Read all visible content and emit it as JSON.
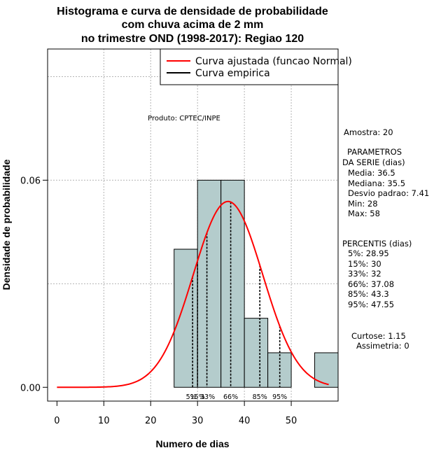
{
  "chart_data": {
    "type": "bar",
    "title_lines": [
      "Histograma e curva de densidade de probabilidade",
      "com chuva acima de 2 mm",
      "no trimestre OND (1998-2017): Regiao 120"
    ],
    "xlabel": "Numero de dias",
    "ylabel": "Densidade de probabilidade",
    "xlim": [
      -2,
      60
    ],
    "ylim": [
      -0.004,
      0.098
    ],
    "x_ticks": [
      0,
      10,
      20,
      30,
      40,
      50
    ],
    "y_ticks": [
      0.0,
      0.06
    ],
    "y_tick_labels": [
      "0.00",
      "0.06"
    ],
    "grid": true,
    "bins": [
      {
        "start": 25,
        "end": 30,
        "density": 0.04
      },
      {
        "start": 30,
        "end": 35,
        "density": 0.06
      },
      {
        "start": 35,
        "end": 40,
        "density": 0.06
      },
      {
        "start": 40,
        "end": 45,
        "density": 0.02
      },
      {
        "start": 45,
        "end": 50,
        "density": 0.01
      },
      {
        "start": 50,
        "end": 55,
        "density": 0.0
      },
      {
        "start": 55,
        "end": 60,
        "density": 0.01
      }
    ],
    "normal_curve": {
      "name": "Curva ajustada (funcao Normal)",
      "mean": 36.5,
      "sd": 7.41,
      "x_from": 0,
      "x_to": 58,
      "color": "#ff0000"
    },
    "empirical_curve": {
      "name": "Curva empirica",
      "color": "#000000"
    },
    "percentile_lines": [
      {
        "label": "5%",
        "value": 28.95
      },
      {
        "label": "15%",
        "value": 30
      },
      {
        "label": "33%",
        "value": 32
      },
      {
        "label": "66%",
        "value": 37.08
      },
      {
        "label": "85%",
        "value": 43.3
      },
      {
        "label": "95%",
        "value": 47.55
      }
    ],
    "annotation": "Produto: CPTEC/INPE",
    "legend_position": "top-right",
    "bar_color": "#b4cccc"
  },
  "side_panel": {
    "amostra": "Amostra: 20",
    "param_title_1": "PARAMETROS",
    "param_title_2": "DA SERIE (dias)",
    "media": "Media: 36.5",
    "mediana": "Mediana: 35.5",
    "desvio": "Desvio padrao: 7.41",
    "min": "Min: 28",
    "max": "Max: 58",
    "pct_title": "PERCENTIS (dias)",
    "p5": "5%: 28.95",
    "p15": "15%: 30",
    "p33": "33%: 32",
    "p66": "66%: 37.08",
    "p85": "85%: 43.3",
    "p95": "95%: 47.55",
    "curtose": "Curtose: 1.15",
    "assimetria": "Assimetria: 0"
  }
}
